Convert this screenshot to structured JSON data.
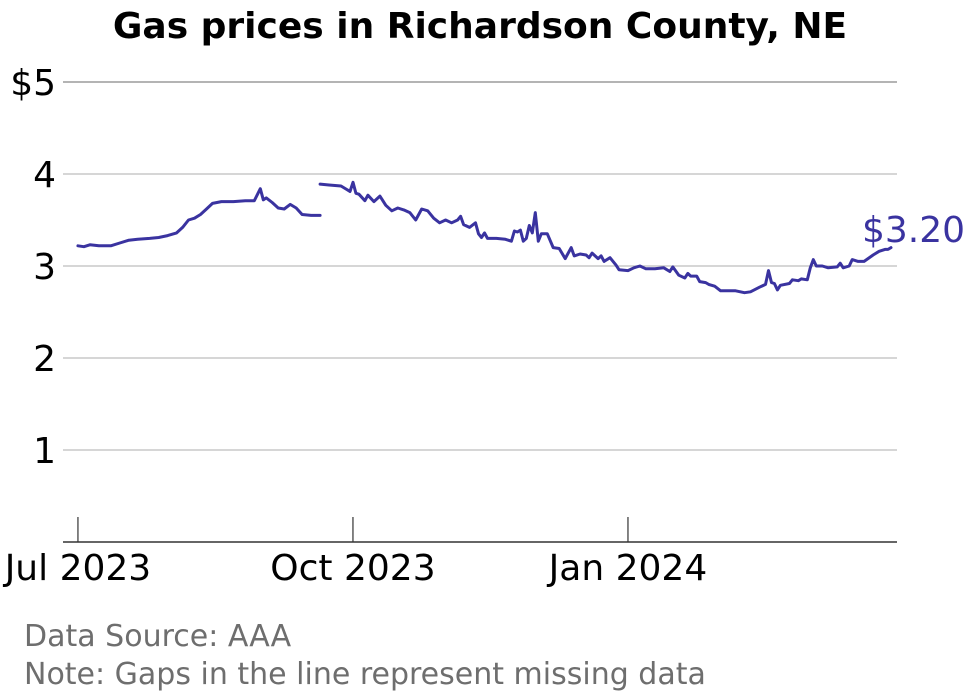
{
  "chart_data": {
    "type": "line",
    "title": "Gas prices in Richardson County, NE",
    "xlabel": "",
    "ylabel": "",
    "ylim": [
      0,
      5
    ],
    "xlim": [
      "2023-06-26",
      "2024-03-31"
    ],
    "y_ticks": [
      {
        "value": 1,
        "label": "1"
      },
      {
        "value": 2,
        "label": "2"
      },
      {
        "value": 3,
        "label": "3"
      },
      {
        "value": 4,
        "label": "4"
      },
      {
        "value": 5,
        "label": "$5"
      }
    ],
    "x_ticks": [
      {
        "date": "2023-07-01",
        "label": "Jul 2023"
      },
      {
        "date": "2023-10-01",
        "label": "Oct 2023"
      },
      {
        "date": "2024-01-01",
        "label": "Jan 2024"
      }
    ],
    "grid": true,
    "line_color": "#3a33a0",
    "end_label": "$3.20",
    "series": [
      {
        "segments": [
          [
            [
              "2023-07-01",
              3.22
            ],
            [
              "2023-07-03",
              3.21
            ],
            [
              "2023-07-05",
              3.23
            ],
            [
              "2023-07-08",
              3.22
            ],
            [
              "2023-07-12",
              3.22
            ],
            [
              "2023-07-15",
              3.25
            ],
            [
              "2023-07-18",
              3.28
            ],
            [
              "2023-07-21",
              3.29
            ],
            [
              "2023-07-25",
              3.3
            ],
            [
              "2023-07-28",
              3.31
            ],
            [
              "2023-07-31",
              3.33
            ],
            [
              "2023-08-03",
              3.36
            ],
            [
              "2023-08-05",
              3.42
            ],
            [
              "2023-08-07",
              3.5
            ],
            [
              "2023-08-09",
              3.52
            ],
            [
              "2023-08-11",
              3.56
            ],
            [
              "2023-08-13",
              3.62
            ],
            [
              "2023-08-15",
              3.68
            ],
            [
              "2023-08-18",
              3.7
            ],
            [
              "2023-08-22",
              3.7
            ],
            [
              "2023-08-26",
              3.71
            ],
            [
              "2023-08-29",
              3.71
            ],
            [
              "2023-08-31",
              3.84
            ],
            [
              "2023-09-01",
              3.72
            ],
            [
              "2023-09-02",
              3.74
            ],
            [
              "2023-09-04",
              3.69
            ],
            [
              "2023-09-06",
              3.63
            ],
            [
              "2023-09-08",
              3.62
            ],
            [
              "2023-09-10",
              3.67
            ],
            [
              "2023-09-12",
              3.63
            ],
            [
              "2023-09-14",
              3.56
            ],
            [
              "2023-09-17",
              3.55
            ],
            [
              "2023-09-20",
              3.55
            ]
          ],
          [
            [
              "2023-09-20",
              3.89
            ],
            [
              "2023-09-23",
              3.88
            ],
            [
              "2023-09-27",
              3.87
            ],
            [
              "2023-09-29",
              3.83
            ],
            [
              "2023-09-30",
              3.81
            ],
            [
              "2023-10-01",
              3.91
            ],
            [
              "2023-10-02",
              3.79
            ],
            [
              "2023-10-03",
              3.78
            ],
            [
              "2023-10-05",
              3.71
            ],
            [
              "2023-10-06",
              3.77
            ],
            [
              "2023-10-08",
              3.7
            ],
            [
              "2023-10-10",
              3.76
            ],
            [
              "2023-10-12",
              3.66
            ],
            [
              "2023-10-14",
              3.6
            ],
            [
              "2023-10-16",
              3.63
            ],
            [
              "2023-10-18",
              3.61
            ],
            [
              "2023-10-20",
              3.58
            ],
            [
              "2023-10-22",
              3.5
            ],
            [
              "2023-10-24",
              3.62
            ],
            [
              "2023-10-26",
              3.6
            ],
            [
              "2023-10-28",
              3.52
            ],
            [
              "2023-10-30",
              3.47
            ],
            [
              "2023-11-01",
              3.5
            ],
            [
              "2023-11-03",
              3.47
            ],
            [
              "2023-11-05",
              3.5
            ],
            [
              "2023-11-06",
              3.54
            ],
            [
              "2023-11-07",
              3.45
            ],
            [
              "2023-11-09",
              3.42
            ],
            [
              "2023-11-11",
              3.47
            ],
            [
              "2023-11-12",
              3.35
            ],
            [
              "2023-11-13",
              3.31
            ],
            [
              "2023-11-14",
              3.36
            ],
            [
              "2023-11-15",
              3.3
            ],
            [
              "2023-11-18",
              3.3
            ],
            [
              "2023-11-21",
              3.29
            ],
            [
              "2023-11-23",
              3.27
            ],
            [
              "2023-11-24",
              3.38
            ],
            [
              "2023-11-25",
              3.37
            ],
            [
              "2023-11-26",
              3.39
            ],
            [
              "2023-11-27",
              3.27
            ],
            [
              "2023-11-28",
              3.3
            ],
            [
              "2023-11-29",
              3.44
            ],
            [
              "2023-11-30",
              3.36
            ],
            [
              "2023-12-01",
              3.58
            ],
            [
              "2023-12-02",
              3.27
            ],
            [
              "2023-12-03",
              3.35
            ],
            [
              "2023-12-05",
              3.35
            ],
            [
              "2023-12-07",
              3.2
            ],
            [
              "2023-12-09",
              3.19
            ],
            [
              "2023-12-11",
              3.08
            ],
            [
              "2023-12-13",
              3.2
            ],
            [
              "2023-12-14",
              3.11
            ],
            [
              "2023-12-16",
              3.13
            ],
            [
              "2023-12-18",
              3.12
            ],
            [
              "2023-12-19",
              3.09
            ],
            [
              "2023-12-20",
              3.14
            ],
            [
              "2023-12-22",
              3.08
            ],
            [
              "2023-12-23",
              3.11
            ],
            [
              "2023-12-24",
              3.05
            ],
            [
              "2023-12-26",
              3.09
            ],
            [
              "2023-12-28",
              3.01
            ],
            [
              "2023-12-29",
              2.96
            ],
            [
              "2024-01-01",
              2.95
            ],
            [
              "2024-01-03",
              2.98
            ],
            [
              "2024-01-05",
              3.0
            ],
            [
              "2024-01-07",
              2.97
            ],
            [
              "2024-01-10",
              2.97
            ],
            [
              "2024-01-13",
              2.98
            ],
            [
              "2024-01-15",
              2.94
            ],
            [
              "2024-01-16",
              2.99
            ],
            [
              "2024-01-18",
              2.9
            ],
            [
              "2024-01-20",
              2.87
            ],
            [
              "2024-01-21",
              2.92
            ],
            [
              "2024-01-22",
              2.89
            ],
            [
              "2024-01-24",
              2.89
            ],
            [
              "2024-01-25",
              2.83
            ],
            [
              "2024-01-27",
              2.82
            ],
            [
              "2024-01-28",
              2.8
            ],
            [
              "2024-01-30",
              2.78
            ],
            [
              "2024-02-01",
              2.73
            ],
            [
              "2024-02-03",
              2.73
            ],
            [
              "2024-02-06",
              2.73
            ],
            [
              "2024-02-09",
              2.71
            ],
            [
              "2024-02-11",
              2.72
            ],
            [
              "2024-02-14",
              2.77
            ],
            [
              "2024-02-16",
              2.8
            ],
            [
              "2024-02-17",
              2.95
            ],
            [
              "2024-02-18",
              2.82
            ],
            [
              "2024-02-19",
              2.81
            ],
            [
              "2024-02-20",
              2.74
            ],
            [
              "2024-02-21",
              2.79
            ],
            [
              "2024-02-24",
              2.81
            ],
            [
              "2024-02-25",
              2.85
            ],
            [
              "2024-02-27",
              2.84
            ],
            [
              "2024-02-28",
              2.86
            ],
            [
              "2024-03-01",
              2.85
            ],
            [
              "2024-03-02",
              2.98
            ],
            [
              "2024-03-03",
              3.07
            ],
            [
              "2024-03-04",
              3.0
            ],
            [
              "2024-03-06",
              3.0
            ],
            [
              "2024-03-08",
              2.98
            ],
            [
              "2024-03-11",
              2.99
            ],
            [
              "2024-03-12",
              3.03
            ],
            [
              "2024-03-13",
              2.98
            ],
            [
              "2024-03-15",
              3.0
            ],
            [
              "2024-03-16",
              3.07
            ],
            [
              "2024-03-18",
              3.05
            ],
            [
              "2024-03-20",
              3.05
            ],
            [
              "2024-03-23",
              3.12
            ],
            [
              "2024-03-25",
              3.16
            ],
            [
              "2024-03-27",
              3.18
            ],
            [
              "2024-03-28",
              3.18
            ],
            [
              "2024-03-29",
              3.2
            ]
          ]
        ]
      }
    ]
  },
  "footer": {
    "source": "Data Source: AAA",
    "note": "Note: Gaps in the line represent missing data"
  }
}
